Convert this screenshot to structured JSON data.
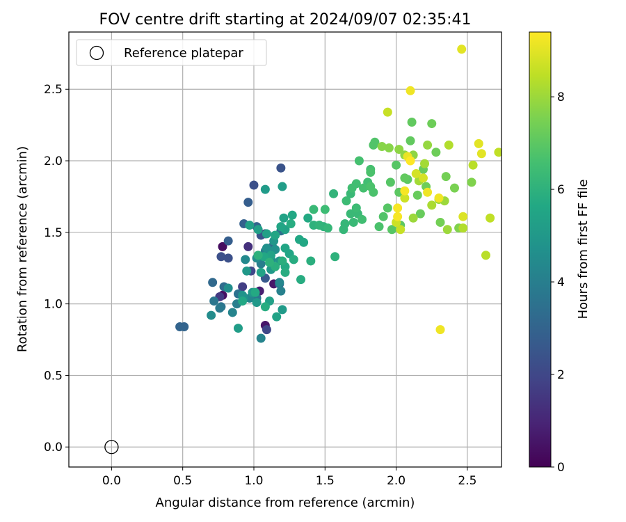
{
  "chart_data": {
    "type": "scatter",
    "title": "FOV centre drift starting at 2024/09/07 02:35:41",
    "xlabel": "Angular distance from reference (arcmin)",
    "ylabel": "Rotation from reference (arcmin)",
    "xlim": [
      -0.3,
      2.74
    ],
    "ylim": [
      -0.14,
      2.9
    ],
    "xticks": [
      0.0,
      0.5,
      1.0,
      1.5,
      2.0,
      2.5
    ],
    "yticks": [
      0.0,
      0.5,
      1.0,
      1.5,
      2.0,
      2.5
    ],
    "grid": true,
    "legend": {
      "position": "top-left",
      "entries": [
        {
          "label": "Reference platepar",
          "marker": "open-circle"
        }
      ]
    },
    "reference": {
      "x": 0.0,
      "y": 0.0
    },
    "colorbar": {
      "label": "Hours from first FF file",
      "min": 0,
      "max": 9.4,
      "ticks": [
        0,
        2,
        4,
        6,
        8
      ],
      "colormap": "viridis"
    },
    "series": [
      {
        "points": [
          [
            0.78,
            1.4,
            0.3
          ],
          [
            0.78,
            1.06,
            0.4
          ],
          [
            1.08,
            0.85,
            0.6
          ],
          [
            1.14,
            1.14,
            0.6
          ],
          [
            1.04,
            1.09,
            0.8
          ],
          [
            0.96,
            1.4,
            1.3
          ],
          [
            1.08,
            1.49,
            1.3
          ],
          [
            0.76,
            1.05,
            1.6
          ],
          [
            1.0,
            1.05,
            1.7
          ],
          [
            0.92,
            1.12,
            1.7
          ],
          [
            1.09,
            0.82,
            2.0
          ],
          [
            0.98,
            1.23,
            2.0
          ],
          [
            0.82,
            1.32,
            2.3
          ],
          [
            0.77,
            1.33,
            2.3
          ],
          [
            1.0,
            1.83,
            2.3
          ],
          [
            1.19,
            1.95,
            2.4
          ],
          [
            1.05,
            1.48,
            2.4
          ],
          [
            1.08,
            1.18,
            2.6
          ],
          [
            0.96,
            1.71,
            2.8
          ],
          [
            0.82,
            1.44,
            2.8
          ],
          [
            0.93,
            1.56,
            2.9
          ],
          [
            0.48,
            0.84,
            3.0
          ],
          [
            0.51,
            0.84,
            3.0
          ],
          [
            1.02,
            1.54,
            3.0
          ],
          [
            0.71,
            1.15,
            3.2
          ],
          [
            0.79,
            1.12,
            3.3
          ],
          [
            1.13,
            1.4,
            3.3
          ],
          [
            1.18,
            1.14,
            3.4
          ],
          [
            1.19,
            1.51,
            3.5
          ],
          [
            0.89,
            1.07,
            3.5
          ],
          [
            0.77,
            0.98,
            3.6
          ],
          [
            1.02,
            1.04,
            3.7
          ],
          [
            0.72,
            1.02,
            3.7
          ],
          [
            0.76,
            0.97,
            3.8
          ],
          [
            0.88,
            1.0,
            4.0
          ],
          [
            1.05,
            1.28,
            4.0
          ],
          [
            1.08,
            1.37,
            4.0
          ],
          [
            1.19,
            1.09,
            4.1
          ],
          [
            0.85,
            0.94,
            4.2
          ],
          [
            1.05,
            0.76,
            4.2
          ],
          [
            1.18,
            1.15,
            4.3
          ],
          [
            0.97,
            1.04,
            4.3
          ],
          [
            0.94,
            1.31,
            4.4
          ],
          [
            1.02,
            1.32,
            4.5
          ],
          [
            0.7,
            0.92,
            4.5
          ],
          [
            1.12,
            1.31,
            4.6
          ],
          [
            0.82,
            1.11,
            4.6
          ],
          [
            1.15,
            1.38,
            4.7
          ],
          [
            1.09,
            1.39,
            4.7
          ],
          [
            0.93,
            1.04,
            4.7
          ],
          [
            0.92,
            1.06,
            4.8
          ],
          [
            1.14,
            1.44,
            4.9
          ],
          [
            1.18,
            1.3,
            4.9
          ],
          [
            0.99,
            1.08,
            5.0
          ],
          [
            1.02,
            1.01,
            5.0
          ],
          [
            1.12,
            1.24,
            5.0
          ],
          [
            0.95,
            1.23,
            5.0
          ],
          [
            1.2,
            0.96,
            5.1
          ],
          [
            1.08,
            1.8,
            5.1
          ],
          [
            1.2,
            1.82,
            5.2
          ],
          [
            0.89,
            0.83,
            5.2
          ],
          [
            1.03,
            1.52,
            5.3
          ],
          [
            1.11,
            1.02,
            5.3
          ],
          [
            0.97,
            1.55,
            5.3
          ],
          [
            1.09,
            1.49,
            5.3
          ],
          [
            1.16,
            0.91,
            5.4
          ],
          [
            1.05,
            1.22,
            5.4
          ],
          [
            1.12,
            1.34,
            5.4
          ],
          [
            1.22,
            1.52,
            5.4
          ],
          [
            1.21,
            1.6,
            5.4
          ],
          [
            1.25,
            1.35,
            5.5
          ],
          [
            1.19,
            1.54,
            5.5
          ],
          [
            1.15,
            1.48,
            5.5
          ],
          [
            1.22,
            1.39,
            5.5
          ],
          [
            1.07,
            1.33,
            5.6
          ],
          [
            0.92,
            1.02,
            5.6
          ],
          [
            1.27,
            1.62,
            5.6
          ],
          [
            1.32,
            1.45,
            5.6
          ],
          [
            1.35,
            1.43,
            5.6
          ],
          [
            1.22,
            1.26,
            5.7
          ],
          [
            1.38,
            1.6,
            5.7
          ],
          [
            1.01,
            1.08,
            5.7
          ],
          [
            1.22,
            1.22,
            5.8
          ],
          [
            1.28,
            1.31,
            5.8
          ],
          [
            1.26,
            1.56,
            5.8
          ],
          [
            1.33,
            1.17,
            5.8
          ],
          [
            1.08,
            0.98,
            5.8
          ],
          [
            1.15,
            1.26,
            5.9
          ],
          [
            1.2,
            1.3,
            5.9
          ],
          [
            1.4,
            1.3,
            5.9
          ],
          [
            1.42,
            1.55,
            6.0
          ],
          [
            1.49,
            1.54,
            6.0
          ],
          [
            1.03,
            1.34,
            6.0
          ],
          [
            1.11,
            1.29,
            6.0
          ],
          [
            1.57,
            1.33,
            6.0
          ],
          [
            1.56,
            1.77,
            6.1
          ],
          [
            1.46,
            1.55,
            6.1
          ],
          [
            1.52,
            1.53,
            6.2
          ],
          [
            1.63,
            1.52,
            6.2
          ],
          [
            1.64,
            1.56,
            6.2
          ],
          [
            1.42,
            1.66,
            6.3
          ],
          [
            1.68,
            1.77,
            6.3
          ],
          [
            1.68,
            1.63,
            6.3
          ],
          [
            1.7,
            1.57,
            6.3
          ],
          [
            1.73,
            1.63,
            6.3
          ],
          [
            1.5,
            1.66,
            6.4
          ],
          [
            1.65,
            1.72,
            6.4
          ],
          [
            1.72,
            1.67,
            6.4
          ],
          [
            1.76,
            1.59,
            6.5
          ],
          [
            1.69,
            1.81,
            6.5
          ],
          [
            1.72,
            1.84,
            6.5
          ],
          [
            1.8,
            1.85,
            6.5
          ],
          [
            1.74,
            2.0,
            6.6
          ],
          [
            1.77,
            1.81,
            6.6
          ],
          [
            1.82,
            1.94,
            6.6
          ],
          [
            1.82,
            1.92,
            6.7
          ],
          [
            1.84,
            1.78,
            6.7
          ],
          [
            1.82,
            1.82,
            6.7
          ],
          [
            1.88,
            1.54,
            6.7
          ],
          [
            1.84,
            2.11,
            6.8
          ],
          [
            1.85,
            2.13,
            6.8
          ],
          [
            1.91,
            1.61,
            6.8
          ],
          [
            1.94,
            1.67,
            6.9
          ],
          [
            1.97,
            1.52,
            6.9
          ],
          [
            1.96,
            1.85,
            6.9
          ],
          [
            2.0,
            1.97,
            6.9
          ],
          [
            2.02,
            1.78,
            7.0
          ],
          [
            2.03,
            1.55,
            7.0
          ],
          [
            2.08,
            1.87,
            7.0
          ],
          [
            2.06,
            1.88,
            7.1
          ],
          [
            2.1,
            2.14,
            7.1
          ],
          [
            2.11,
            2.27,
            7.1
          ],
          [
            2.15,
            1.76,
            7.2
          ],
          [
            2.17,
            1.63,
            7.2
          ],
          [
            2.19,
            1.94,
            7.2
          ],
          [
            2.21,
            1.82,
            7.3
          ],
          [
            2.25,
            2.26,
            7.3
          ],
          [
            2.28,
            2.06,
            7.3
          ],
          [
            2.31,
            1.57,
            7.4
          ],
          [
            2.35,
            1.89,
            7.4
          ],
          [
            2.41,
            1.81,
            7.5
          ],
          [
            2.44,
            1.53,
            7.6
          ],
          [
            2.53,
            1.85,
            7.6
          ],
          [
            1.9,
            2.1,
            7.7
          ],
          [
            1.95,
            2.09,
            7.7
          ],
          [
            2.02,
            2.08,
            7.8
          ],
          [
            2.06,
            2.04,
            7.8
          ],
          [
            2.12,
            2.04,
            7.8
          ],
          [
            2.22,
            2.11,
            7.9
          ],
          [
            2.3,
            1.73,
            7.9
          ],
          [
            2.34,
            1.72,
            8.0
          ],
          [
            2.36,
            1.52,
            8.0
          ],
          [
            2.12,
            1.6,
            8.0
          ],
          [
            2.16,
            1.86,
            8.1
          ],
          [
            2.2,
            1.98,
            8.1
          ],
          [
            2.25,
            1.69,
            8.2
          ],
          [
            2.37,
            2.11,
            8.3
          ],
          [
            2.47,
            1.53,
            8.3
          ],
          [
            2.54,
            1.97,
            8.4
          ],
          [
            2.63,
            1.34,
            8.4
          ],
          [
            2.66,
            1.6,
            8.5
          ],
          [
            2.72,
            2.06,
            8.5
          ],
          [
            1.94,
            2.34,
            8.6
          ],
          [
            2.03,
            1.52,
            8.6
          ],
          [
            2.06,
            1.74,
            8.7
          ],
          [
            2.0,
            1.57,
            8.7
          ],
          [
            2.14,
            1.91,
            8.8
          ],
          [
            2.19,
            1.88,
            8.8
          ],
          [
            2.47,
            1.61,
            8.9
          ],
          [
            2.46,
            2.78,
            9.0
          ],
          [
            2.58,
            2.12,
            9.0
          ],
          [
            2.6,
            2.05,
            9.0
          ],
          [
            2.08,
            2.03,
            9.1
          ],
          [
            2.1,
            2.49,
            9.2
          ],
          [
            2.3,
            1.74,
            9.2
          ],
          [
            2.22,
            1.78,
            9.2
          ],
          [
            2.31,
            0.82,
            9.2
          ],
          [
            2.06,
            1.79,
            9.3
          ],
          [
            2.01,
            1.67,
            9.3
          ],
          [
            2.01,
            1.61,
            9.3
          ],
          [
            2.1,
            2.0,
            9.4
          ]
        ]
      }
    ]
  }
}
